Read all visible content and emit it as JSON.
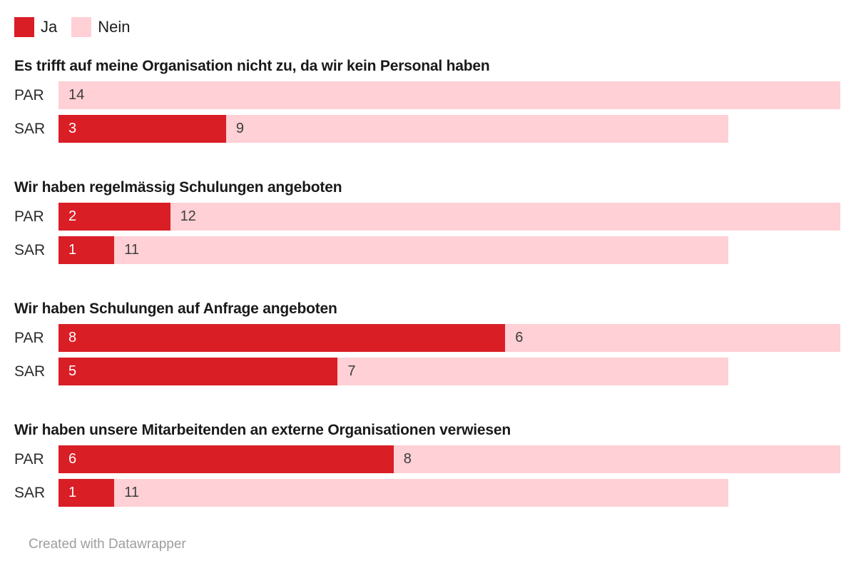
{
  "legend": {
    "items": [
      {
        "label": "Ja",
        "color": "#d91e26"
      },
      {
        "label": "Nein",
        "color": "#ffd0d5"
      }
    ]
  },
  "footer": {
    "text": "Created with Datawrapper"
  },
  "chart_data": {
    "type": "bar",
    "orientation": "horizontal",
    "stacked": true,
    "series_names": [
      "Ja",
      "Nein"
    ],
    "colors": {
      "Ja": "#d91e26",
      "Nein": "#ffd0d5"
    },
    "value_label_colors": {
      "Ja": "#ffffff",
      "Nein": "#3d3d3d"
    },
    "xmax": 14,
    "legend_position": "top-left",
    "grid": false,
    "groups": [
      {
        "title": "Es trifft auf meine Organisation nicht zu, da wir kein Personal haben",
        "rows": [
          {
            "label": "PAR",
            "ja": 0,
            "nein": 14
          },
          {
            "label": "SAR",
            "ja": 3,
            "nein": 9
          }
        ]
      },
      {
        "title": "Wir haben regelmässig Schulungen angeboten",
        "rows": [
          {
            "label": "PAR",
            "ja": 2,
            "nein": 12
          },
          {
            "label": "SAR",
            "ja": 1,
            "nein": 11
          }
        ]
      },
      {
        "title": "Wir haben Schulungen auf Anfrage angeboten",
        "rows": [
          {
            "label": "PAR",
            "ja": 8,
            "nein": 6
          },
          {
            "label": "SAR",
            "ja": 5,
            "nein": 7
          }
        ]
      },
      {
        "title": "Wir haben unsere Mitarbeitenden an externe Organisationen verwiesen",
        "rows": [
          {
            "label": "PAR",
            "ja": 6,
            "nein": 8
          },
          {
            "label": "SAR",
            "ja": 1,
            "nein": 11
          }
        ]
      }
    ]
  }
}
